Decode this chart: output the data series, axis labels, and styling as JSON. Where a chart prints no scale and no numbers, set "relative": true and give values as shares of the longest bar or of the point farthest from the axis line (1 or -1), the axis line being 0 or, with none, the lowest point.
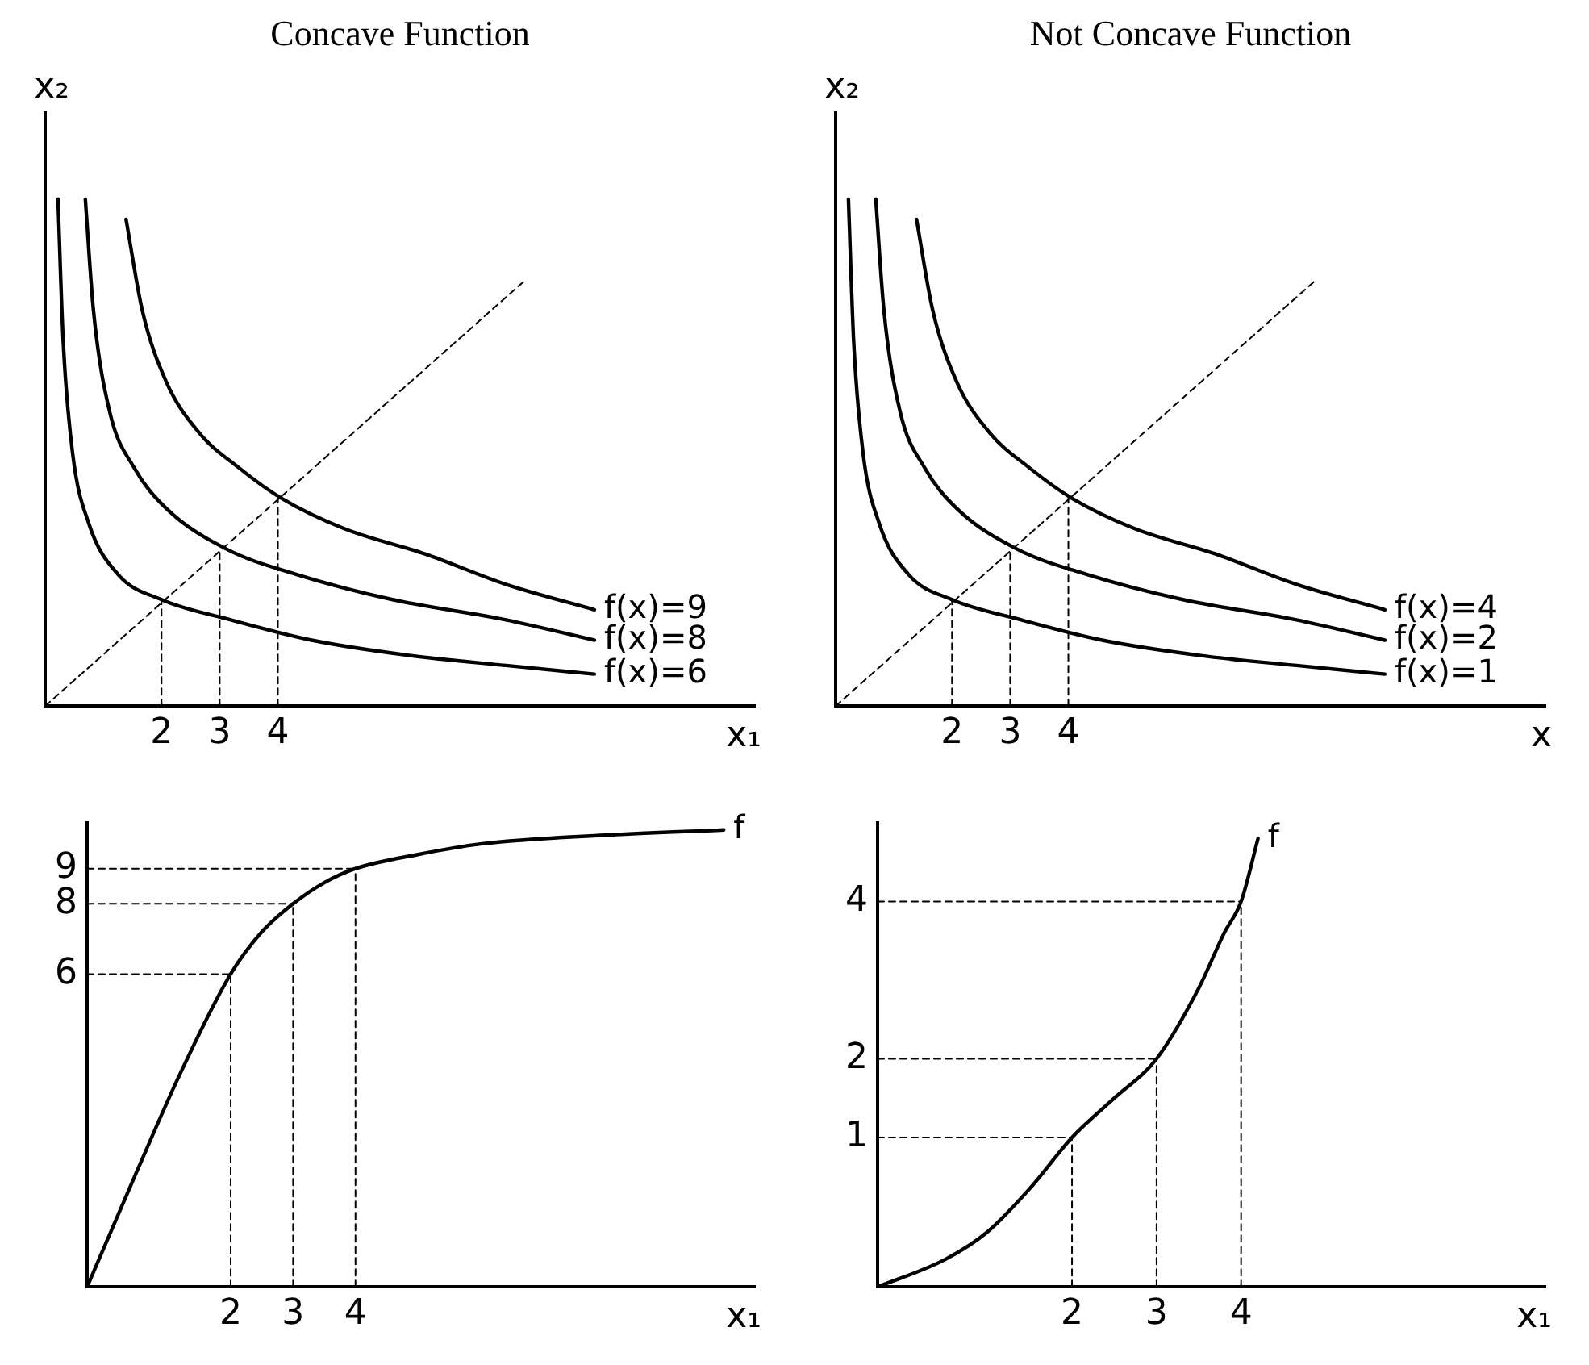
{
  "chart_data": [
    {
      "type": "line",
      "title": "Concave Function",
      "xlabel": "x₁",
      "ylabel": "x₂",
      "relative": true,
      "marker": "none",
      "xlim": [
        0,
        12.2
      ],
      "xticks": [
        2,
        3,
        4
      ],
      "series": [
        {
          "name": "f(x)=9",
          "color": "#000000",
          "x": [
            1.39,
            1.67,
            2.08,
            2.64,
            3.33,
            4.06,
            5.14,
            6.53,
            7.92,
            9.44
          ],
          "values": [
            0.96,
            0.78,
            0.64,
            0.54,
            0.47,
            0.41,
            0.35,
            0.3,
            0.24,
            0.19
          ]
        },
        {
          "name": "f(x)=8",
          "color": "#000000",
          "x": [
            0.69,
            0.83,
            1.11,
            1.53,
            2.08,
            3.11,
            4.31,
            5.97,
            7.92,
            9.44
          ],
          "values": [
            1.0,
            0.78,
            0.58,
            0.47,
            0.39,
            0.31,
            0.26,
            0.21,
            0.17,
            0.13
          ]
        },
        {
          "name": "f(x)=6",
          "color": "#000000",
          "x": [
            0.22,
            0.31,
            0.47,
            0.75,
            1.25,
            2,
            3.19,
            4.58,
            6.25,
            7.92,
            9.44
          ],
          "values": [
            1.0,
            0.72,
            0.5,
            0.36,
            0.26,
            0.21,
            0.17,
            0.13,
            0.1,
            0.08,
            0.063
          ]
        },
        {
          "color": "#000000",
          "line_style": "dashed",
          "x": [
            0,
            8.25
          ],
          "values": [
            0,
            0.84
          ]
        },
        {
          "color": "#000000",
          "line_style": "dashed",
          "x": [
            2,
            2
          ],
          "values": [
            0,
            0.21
          ]
        },
        {
          "color": "#000000",
          "line_style": "dashed",
          "x": [
            3,
            3
          ],
          "values": [
            0,
            0.31
          ]
        },
        {
          "color": "#000000",
          "line_style": "dashed",
          "x": [
            4,
            4
          ],
          "values": [
            0,
            0.41
          ]
        }
      ]
    },
    {
      "type": "line",
      "title": "Not Concave Function",
      "xlabel": "x",
      "ylabel": "x₂",
      "relative": true,
      "marker": "none",
      "xlim": [
        0,
        12.2
      ],
      "xticks": [
        2,
        3,
        4
      ],
      "series": [
        {
          "name": "f(x)=4",
          "color": "#000000",
          "x": [
            1.39,
            1.67,
            2.08,
            2.64,
            3.33,
            4.06,
            5.14,
            6.53,
            7.92,
            9.44
          ],
          "values": [
            0.96,
            0.78,
            0.64,
            0.54,
            0.47,
            0.41,
            0.35,
            0.3,
            0.24,
            0.19
          ]
        },
        {
          "name": "f(x)=2",
          "color": "#000000",
          "x": [
            0.69,
            0.83,
            1.11,
            1.53,
            2.08,
            3.11,
            4.31,
            5.97,
            7.92,
            9.44
          ],
          "values": [
            1.0,
            0.78,
            0.58,
            0.47,
            0.39,
            0.31,
            0.26,
            0.21,
            0.17,
            0.13
          ]
        },
        {
          "name": "f(x)=1",
          "color": "#000000",
          "x": [
            0.22,
            0.31,
            0.47,
            0.75,
            1.25,
            2,
            3.19,
            4.58,
            6.25,
            7.92,
            9.44
          ],
          "values": [
            1.0,
            0.72,
            0.5,
            0.36,
            0.26,
            0.21,
            0.17,
            0.13,
            0.1,
            0.08,
            0.063
          ]
        },
        {
          "color": "#000000",
          "line_style": "dashed",
          "x": [
            0,
            8.25
          ],
          "values": [
            0,
            0.84
          ]
        },
        {
          "color": "#000000",
          "line_style": "dashed",
          "x": [
            2,
            2
          ],
          "values": [
            0,
            0.21
          ]
        },
        {
          "color": "#000000",
          "line_style": "dashed",
          "x": [
            3,
            3
          ],
          "values": [
            0,
            0.31
          ]
        },
        {
          "color": "#000000",
          "line_style": "dashed",
          "x": [
            4,
            4
          ],
          "values": [
            0,
            0.41
          ]
        }
      ]
    },
    {
      "type": "line",
      "xlabel": "x₁",
      "marker": "none",
      "xlim": [
        -0.3,
        10.4
      ],
      "xticks": [
        2,
        3,
        4
      ],
      "ylim": [
        -2.9,
        10.3
      ],
      "yticks": [
        6,
        8,
        9
      ],
      "series": [
        {
          "name": "f",
          "color": "#000000",
          "x": [
            -0.3,
            0.5,
            1.2,
            2,
            2.5,
            3,
            3.5,
            4,
            5,
            6,
            8,
            9.9
          ],
          "values": [
            -2.9,
            0.4,
            3.2,
            6,
            7.2,
            8,
            8.6,
            9,
            9.4,
            9.7,
            9.95,
            10.1
          ]
        },
        {
          "color": "#000000",
          "line_style": "dashed",
          "x": [
            -0.3,
            2
          ],
          "values": [
            6,
            6
          ]
        },
        {
          "color": "#000000",
          "line_style": "dashed",
          "x": [
            2,
            2
          ],
          "values": [
            -2.9,
            6
          ]
        },
        {
          "color": "#000000",
          "line_style": "dashed",
          "x": [
            -0.3,
            3
          ],
          "values": [
            8,
            8
          ]
        },
        {
          "color": "#000000",
          "line_style": "dashed",
          "x": [
            3,
            3
          ],
          "values": [
            -2.9,
            8
          ]
        },
        {
          "color": "#000000",
          "line_style": "dashed",
          "x": [
            -0.3,
            4
          ],
          "values": [
            9,
            9
          ]
        },
        {
          "color": "#000000",
          "line_style": "dashed",
          "x": [
            4,
            4
          ],
          "values": [
            -2.9,
            9
          ]
        }
      ]
    },
    {
      "type": "line",
      "xlabel": "x₁",
      "marker": "none",
      "xlim": [
        -0.3,
        7.6
      ],
      "xticks": [
        2,
        3,
        4
      ],
      "ylim": [
        -0.9,
        5.0
      ],
      "yticks": [
        1,
        2,
        4
      ],
      "series": [
        {
          "name": "f",
          "color": "#000000",
          "x": [
            -0.3,
            0.5,
            1,
            1.5,
            2,
            2.5,
            3,
            3.5,
            3.8,
            4,
            4.2
          ],
          "values": [
            -0.9,
            -0.55,
            -0.2,
            0.35,
            1,
            1.5,
            2,
            2.9,
            3.6,
            4,
            4.8
          ]
        },
        {
          "color": "#000000",
          "line_style": "dashed",
          "x": [
            -0.3,
            2
          ],
          "values": [
            1,
            1
          ]
        },
        {
          "color": "#000000",
          "line_style": "dashed",
          "x": [
            2,
            2
          ],
          "values": [
            -0.9,
            1
          ]
        },
        {
          "color": "#000000",
          "line_style": "dashed",
          "x": [
            -0.3,
            3
          ],
          "values": [
            2,
            2
          ]
        },
        {
          "color": "#000000",
          "line_style": "dashed",
          "x": [
            3,
            3
          ],
          "values": [
            -0.9,
            2
          ]
        },
        {
          "color": "#000000",
          "line_style": "dashed",
          "x": [
            -0.3,
            4
          ],
          "values": [
            4,
            4
          ]
        },
        {
          "color": "#000000",
          "line_style": "dashed",
          "x": [
            4,
            4
          ],
          "values": [
            -0.9,
            4
          ]
        }
      ]
    }
  ]
}
